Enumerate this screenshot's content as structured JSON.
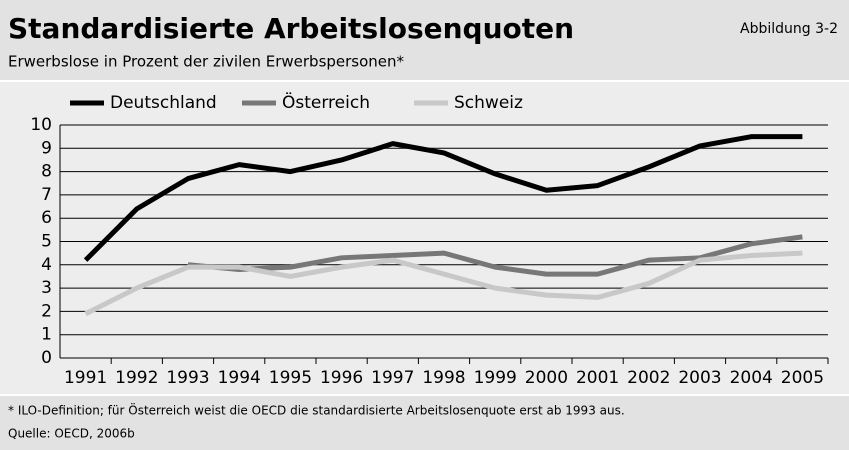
{
  "chart_data": {
    "type": "line",
    "title": "Standardisierte Arbeitslosenquoten",
    "figure_label": "Abbildung 3-2",
    "subtitle": "Erwerbslose in Prozent der zivilen Erwerbspersonen*",
    "footnote": "* ILO-Definition; für Österreich weist die OECD die standardisierte Arbeitslosenquote erst ab 1993 aus.",
    "source": "Quelle: OECD, 2006b",
    "categories": [
      "1991",
      "1992",
      "1993",
      "1994",
      "1995",
      "1996",
      "1997",
      "1998",
      "1999",
      "2000",
      "2001",
      "2002",
      "2003",
      "2004",
      "2005"
    ],
    "series": [
      {
        "name": "Deutschland",
        "color": "#000000",
        "values": [
          4.2,
          6.4,
          7.7,
          8.3,
          8.0,
          8.5,
          9.2,
          8.8,
          7.9,
          7.2,
          7.4,
          8.2,
          9.1,
          9.5,
          9.5
        ]
      },
      {
        "name": "Österreich",
        "color": "#777777",
        "values": [
          null,
          null,
          4.0,
          3.8,
          3.9,
          4.3,
          4.4,
          4.5,
          3.9,
          3.6,
          3.6,
          4.2,
          4.3,
          4.9,
          5.2
        ]
      },
      {
        "name": "Schweiz",
        "color": "#c8c8c8",
        "values": [
          1.9,
          3.0,
          3.9,
          3.9,
          3.5,
          3.9,
          4.2,
          3.6,
          3.0,
          2.7,
          2.6,
          3.2,
          4.2,
          4.4,
          4.5
        ]
      }
    ],
    "ylim": [
      0,
      10
    ],
    "yticks": [
      0,
      1,
      2,
      3,
      4,
      5,
      6,
      7,
      8,
      9,
      10
    ],
    "grid": true,
    "legend": "top"
  }
}
